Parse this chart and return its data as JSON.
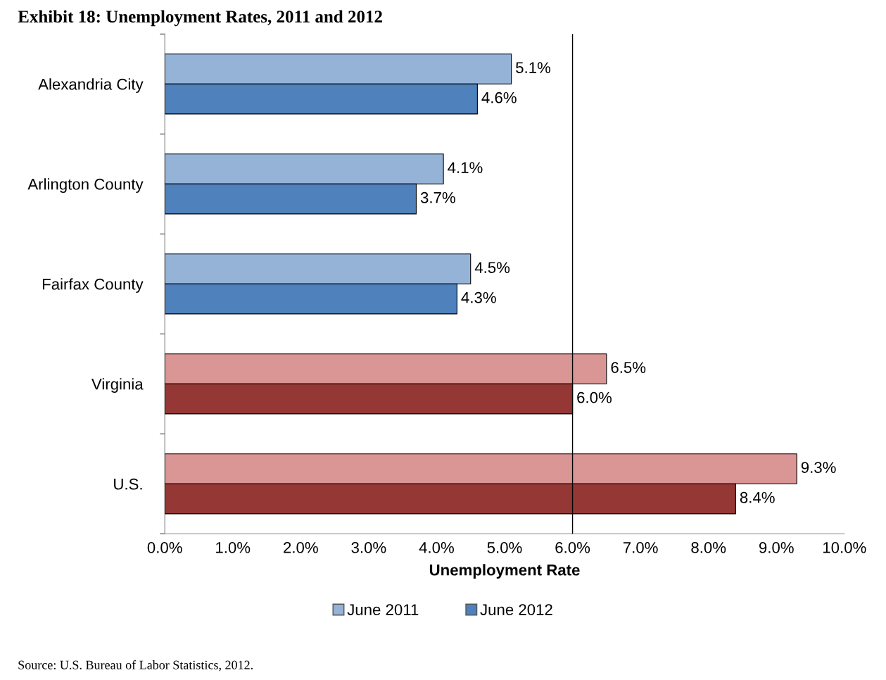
{
  "chart_data": {
    "type": "bar",
    "orientation": "horizontal",
    "title": "Exhibit 18: Unemployment Rates, 2011 and 2012",
    "xlabel": "Unemployment Rate",
    "categories": [
      "Alexandria City",
      "Arlington County",
      "Fairfax County",
      "Virginia",
      "U.S."
    ],
    "series": [
      {
        "name": "June 2011",
        "color": "#95b3d7",
        "colors": [
          "#95b3d7",
          "#95b3d7",
          "#95b3d7",
          "#d99694",
          "#d99694"
        ],
        "values": [
          5.1,
          4.1,
          4.5,
          6.5,
          9.3
        ],
        "value_labels": [
          "5.1%",
          "4.1%",
          "4.5%",
          "6.5%",
          "9.3%"
        ]
      },
      {
        "name": "June 2012",
        "color": "#4f81bd",
        "colors": [
          "#4f81bd",
          "#4f81bd",
          "#4f81bd",
          "#953735",
          "#953735"
        ],
        "values": [
          4.6,
          3.7,
          4.3,
          6.0,
          8.4
        ],
        "value_labels": [
          "4.6%",
          "3.7%",
          "4.3%",
          "6.0%",
          "8.4%"
        ]
      }
    ],
    "xlim": [
      0,
      10
    ],
    "xticks": [
      {
        "value": 0,
        "label": "0.0%"
      },
      {
        "value": 1,
        "label": "1.0%"
      },
      {
        "value": 2,
        "label": "2.0%"
      },
      {
        "value": 3,
        "label": "3.0%"
      },
      {
        "value": 4,
        "label": "4.0%"
      },
      {
        "value": 5,
        "label": "5.0%"
      },
      {
        "value": 6,
        "label": "6.0%"
      },
      {
        "value": 7,
        "label": "7.0%"
      },
      {
        "value": 8,
        "label": "8.0%"
      },
      {
        "value": 9,
        "label": "9.0%"
      },
      {
        "value": 10,
        "label": "10.0%"
      }
    ],
    "ref_lines": [
      {
        "axis": "x",
        "value": 6.0,
        "color": "#000000"
      }
    ],
    "legend": "bottom",
    "grid": false,
    "annotations": [
      "Source: U.S. Bureau of Labor Statistics, 2012."
    ]
  }
}
